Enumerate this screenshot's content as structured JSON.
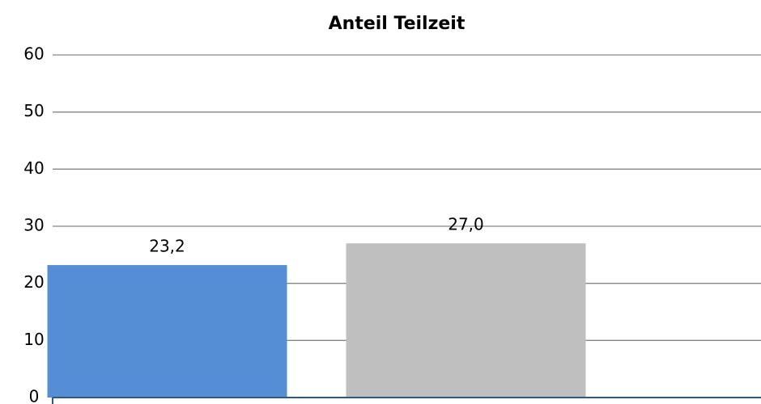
{
  "chart_data": {
    "type": "bar",
    "title": "Anteil Teilzeit",
    "categories": [
      null,
      null
    ],
    "values": [
      23.2,
      27.0
    ],
    "value_labels": [
      "23,2",
      "27,0"
    ],
    "colors": [
      "#558ed5",
      "#bfbfbf"
    ],
    "ylim": [
      0,
      60
    ],
    "yticks": [
      0,
      10,
      20,
      30,
      40,
      50,
      60
    ],
    "grid": true
  }
}
